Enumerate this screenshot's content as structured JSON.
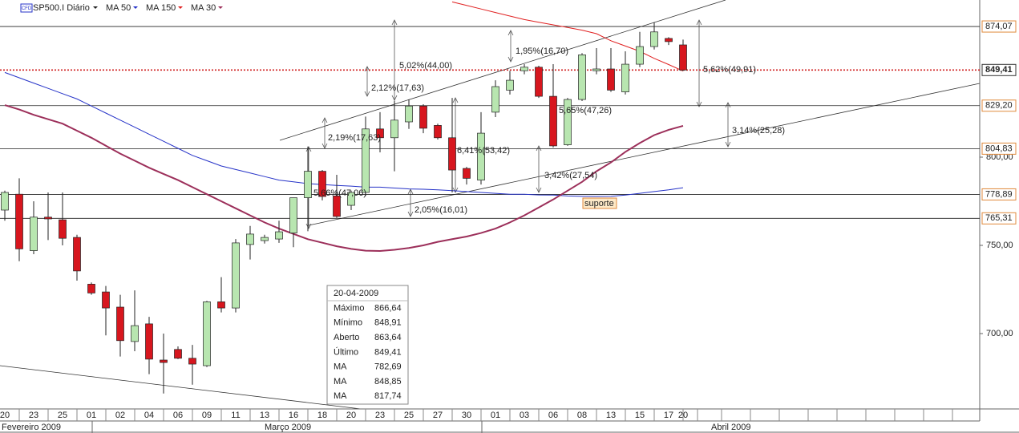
{
  "chart_data": {
    "type": "candlestick",
    "title": "SP500.I Diário",
    "icon": "CFD",
    "categories": [
      "20",
      null,
      "23",
      null,
      "25",
      null,
      "01",
      null,
      "02",
      null,
      "04",
      null,
      "06",
      null,
      "09",
      null,
      "11",
      null,
      "13",
      null,
      "16",
      null,
      "18",
      null,
      "20",
      null,
      "23",
      null,
      "25",
      null,
      "27",
      null,
      "30",
      null,
      "01",
      null,
      "03",
      null,
      "06",
      null,
      "08",
      null,
      "13",
      null,
      "15",
      null,
      "17",
      "20"
    ],
    "months": [
      "Fevereiro 2009",
      "Março 2009",
      "Abril 2009"
    ],
    "open": [
      770,
      779,
      747,
      766,
      764.5,
      754.5,
      728,
      723.6,
      715,
      695.5,
      705.5,
      685,
      691,
      686,
      681.8,
      718,
      714.5,
      750.5,
      752.7,
      753.6,
      757,
      777,
      792,
      778,
      772.7,
      780,
      816,
      811,
      820,
      829,
      818,
      811,
      793.6,
      787,
      825.5,
      838,
      849,
      851,
      834.5,
      807,
      832.7,
      849,
      850,
      837,
      852.7,
      862.7,
      867.3,
      863.64
    ],
    "high": [
      781,
      788,
      775,
      780,
      780,
      756,
      729,
      727,
      722,
      724.5,
      709.5,
      700,
      692.7,
      693.6,
      718.6,
      732,
      753.6,
      761,
      756,
      764,
      777,
      806,
      792.7,
      790,
      781,
      823,
      825.5,
      832,
      832.7,
      830,
      819,
      833.6,
      794.5,
      825.5,
      843.6,
      849,
      852.7,
      851.8,
      852.7,
      833.6,
      859,
      861.8,
      861.8,
      860,
      871,
      876.4,
      868,
      866.64
    ],
    "low": [
      764,
      741,
      745,
      753,
      750,
      730,
      722,
      699,
      687,
      690,
      677,
      666,
      685.5,
      671,
      681,
      712,
      712,
      742,
      751,
      751.4,
      749,
      758,
      775.5,
      765.5,
      770,
      778,
      802.7,
      792,
      816,
      813.6,
      810,
      780,
      784.5,
      784.5,
      822.7,
      835.5,
      847,
      833.6,
      805.5,
      806.4,
      831.8,
      847,
      837,
      835.5,
      851,
      861,
      863.6,
      848.91
    ],
    "close": [
      780,
      748,
      766,
      765,
      754,
      735.5,
      723,
      714.5,
      696,
      704.5,
      685.5,
      683.6,
      686,
      682.7,
      718,
      714.5,
      751.4,
      756.4,
      754.5,
      757.7,
      777,
      792,
      777.7,
      766.4,
      780,
      816,
      811,
      821,
      829,
      816.4,
      811,
      792.7,
      788,
      813.6,
      840,
      843.6,
      851,
      834.5,
      806.4,
      832.7,
      858,
      850,
      838,
      852.7,
      862.7,
      871,
      865.5,
      849.41
    ],
    "up_color": "#b8e6b0",
    "down_color": "#d7161e",
    "series": [
      {
        "name": "MA 50",
        "color": "#2633c8",
        "values": [
          848,
          845,
          842,
          839,
          836,
          833,
          829,
          825,
          821,
          817,
          813,
          809,
          805,
          801,
          798,
          795,
          793,
          791,
          789,
          787,
          786,
          785,
          784.5,
          784,
          783.6,
          783,
          783,
          782.5,
          782,
          781.8,
          781.5,
          781,
          780.5,
          780,
          779.5,
          779,
          779,
          778.6,
          778.5,
          778,
          777.8,
          777.7,
          777.8,
          778.5,
          779.5,
          780.5,
          781.5,
          782.69
        ]
      },
      {
        "name": "MA 150",
        "color": "#e02020",
        "values": [
          null,
          null,
          null,
          null,
          null,
          null,
          null,
          null,
          null,
          null,
          null,
          null,
          null,
          null,
          null,
          null,
          null,
          null,
          null,
          null,
          null,
          null,
          null,
          null,
          null,
          null,
          null,
          null,
          null,
          null,
          null,
          888,
          886,
          884,
          882,
          880,
          878,
          876.5,
          875,
          873.5,
          872,
          870,
          866,
          863,
          860,
          856,
          852.5,
          848.85
        ]
      },
      {
        "name": "MA 30",
        "color": "#9c2f5a",
        "values": [
          829.5,
          827,
          824,
          821.5,
          819,
          815,
          811,
          806.5,
          802,
          798,
          794,
          790.5,
          787,
          783,
          779,
          775,
          771,
          767,
          763,
          759.5,
          756.5,
          753.5,
          751.5,
          749.5,
          748,
          747,
          746.8,
          747.5,
          748.5,
          750,
          752,
          753.5,
          755,
          757,
          759.5,
          763,
          767,
          771.5,
          776,
          781,
          786,
          792,
          797,
          803,
          808,
          812.5,
          815.5,
          817.74
        ]
      }
    ],
    "ylim": [
      657.27,
      889.09
    ],
    "yticks": [
      {
        "value": 700,
        "label": "700,00"
      },
      {
        "value": 750,
        "label": "750,00"
      },
      {
        "value": 800,
        "label": "800,00"
      }
    ],
    "levels": [
      {
        "value": 874.07,
        "label": "874,07"
      },
      {
        "value": 849.41,
        "label": "849,41"
      },
      {
        "value": 829.2,
        "label": "829,20"
      },
      {
        "value": 804.83,
        "label": "804,83"
      },
      {
        "value": 778.89,
        "label": "778,89"
      },
      {
        "value": 765.31,
        "label": "765,31"
      }
    ],
    "annotations": [
      "5,02%(44,00)",
      "2,12%(17,63)",
      "1,95%(16,70)",
      "5,62%(49,91)",
      "2,19%(17,63)",
      "5,65%(47,26)",
      "3,14%(25,28)",
      "6,41%(53,42)",
      "5,66%(47,06)",
      "3,42%(27,54)",
      "2,05%(16,01)",
      "suporte"
    ],
    "info": {
      "date": "20-04-2009",
      "rows": [
        {
          "label": "Máximo",
          "value": "866,64"
        },
        {
          "label": "Mínimo",
          "value": "848,91"
        },
        {
          "label": "Aberto",
          "value": "863,64"
        },
        {
          "label": "Último",
          "value": "849,41"
        },
        {
          "label": "MA",
          "value": "782,69",
          "color": "#2633c8"
        },
        {
          "label": "MA",
          "value": "848,85",
          "color": "#e02020"
        },
        {
          "label": "MA",
          "value": "817,74",
          "color": "#9c2f5a"
        }
      ]
    }
  }
}
